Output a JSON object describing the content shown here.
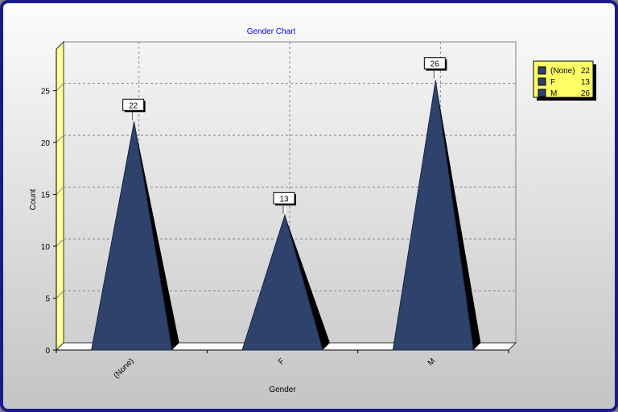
{
  "chart_data": {
    "type": "bar",
    "title": "Gender Chart",
    "xlabel": "Gender",
    "ylabel": "Count",
    "categories": [
      "(None)",
      "F",
      "M"
    ],
    "values": [
      22,
      13,
      26
    ],
    "ylim": [
      0,
      29
    ],
    "yticks": [
      0,
      5,
      10,
      15,
      20,
      25
    ],
    "grid": true,
    "legend_position": "top-right",
    "legend": [
      {
        "label": "(None)",
        "value": "22"
      },
      {
        "label": "F",
        "value": "13"
      },
      {
        "label": "M",
        "value": "26"
      }
    ],
    "colors": {
      "bar": "#2e426c",
      "bar_shadow": "#000000",
      "left_wall": "#ffff99",
      "legend_bg": "#ffff66",
      "title": "#0000ff",
      "frame_border": "#1a1a8c"
    }
  }
}
